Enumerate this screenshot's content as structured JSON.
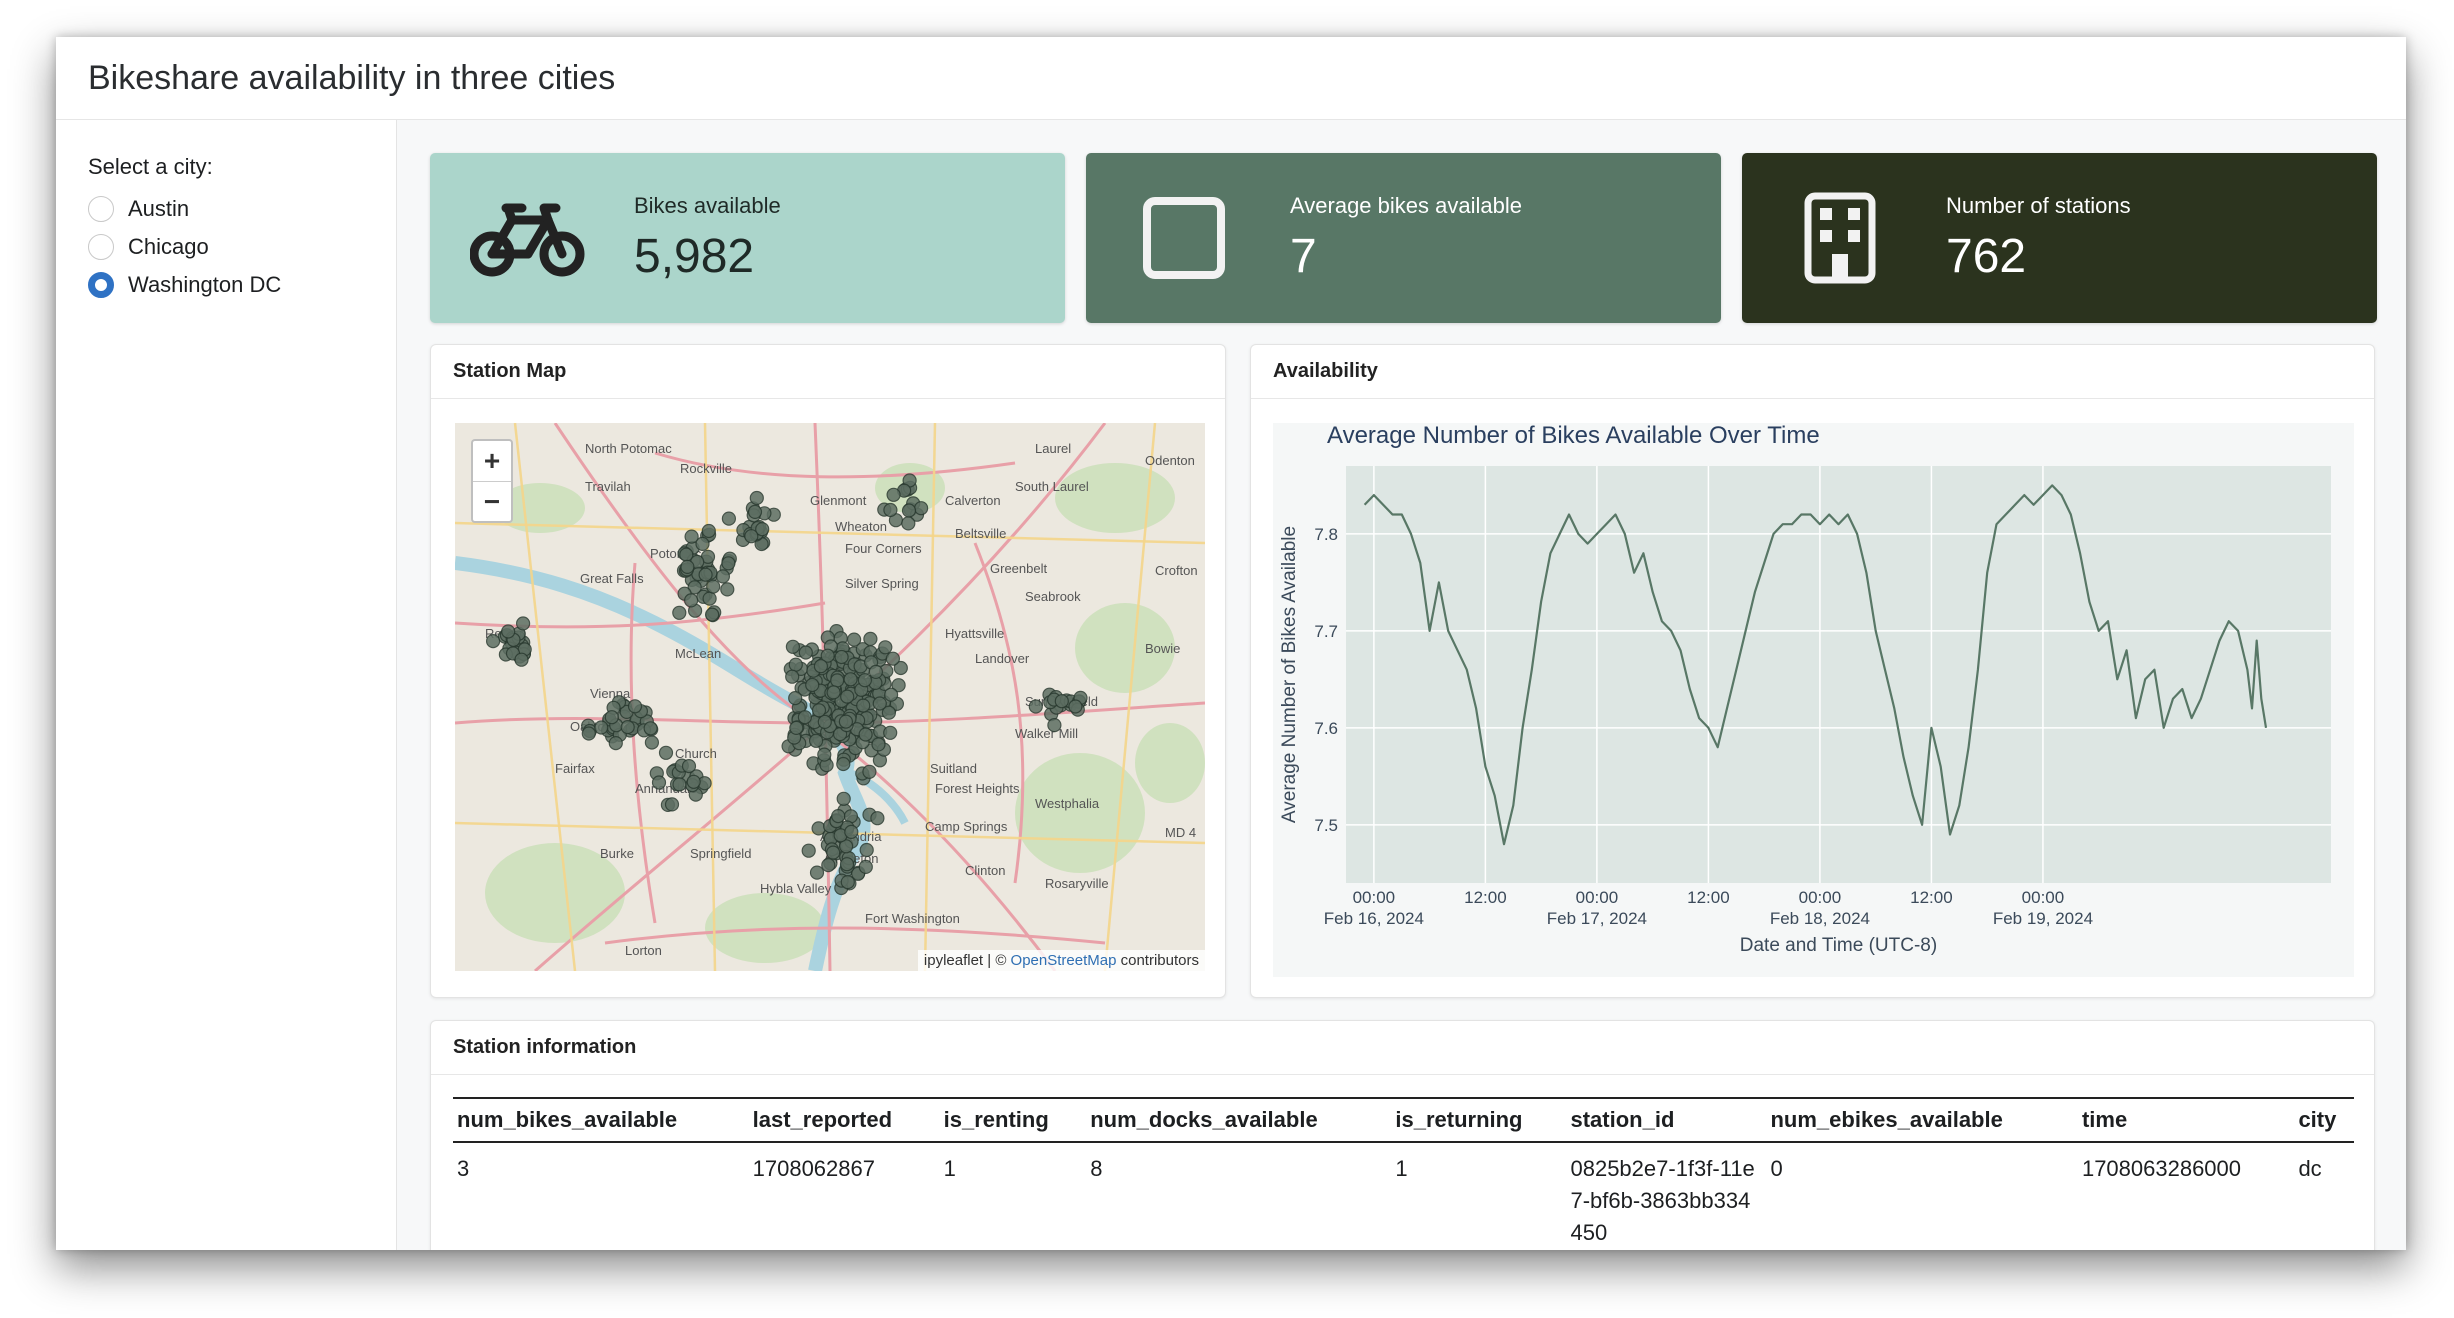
{
  "header": {
    "title": "Bikeshare availability in three cities"
  },
  "sidebar": {
    "label": "Select a city:",
    "options": [
      {
        "label": "Austin",
        "selected": false
      },
      {
        "label": "Chicago",
        "selected": false
      },
      {
        "label": "Washington DC",
        "selected": true
      }
    ]
  },
  "value_boxes": [
    {
      "title": "Bikes available",
      "value": "5,982",
      "icon": "bicycle-icon",
      "color": "#abd5cb"
    },
    {
      "title": "Average bikes available",
      "value": "7",
      "icon": "square-icon",
      "color": "#587766"
    },
    {
      "title": "Number of stations",
      "value": "762",
      "icon": "building-icon",
      "color": "#2b331e"
    }
  ],
  "map_card": {
    "title": "Station Map",
    "zoom_in": "+",
    "zoom_out": "−",
    "attribution_prefix": "ipyleaflet | © ",
    "attribution_link": "OpenStreetMap",
    "attribution_suffix": " contributors",
    "place_labels": [
      "North Potomac",
      "Rockville",
      "Laurel",
      "Odenton",
      "Travilah",
      "Glenmont",
      "Calverton",
      "South Laurel",
      "Wheaton",
      "Beltsville",
      "Potomac",
      "Four Corners",
      "Greenbelt",
      "Great Falls",
      "Silver Spring",
      "Seabrook",
      "Crofton",
      "Reston",
      "Hyattsville",
      "Bowie",
      "McLean",
      "Landover",
      "Vienna",
      "Summerfield",
      "Oakton",
      "Walker Mill",
      "Church",
      "Fairfax",
      "Suitland",
      "Annandale",
      "Forest Heights",
      "Westphalia",
      "Camp Springs",
      "Burke",
      "Springfield",
      "Groveton",
      "Clinton",
      "Hybla Valley",
      "Rosaryville",
      "Fort Washington",
      "Lorton",
      "Alexandria",
      "MD 4"
    ]
  },
  "availability_card": {
    "title": "Availability",
    "colors": {
      "line": "#587766",
      "plot_bg": "#dde6e3",
      "paper_bg": "#f5f7f7"
    }
  },
  "chart_data": {
    "type": "line",
    "title": "Average Number of Bikes Available Over Time",
    "xlabel": "Date and Time (UTC-8)",
    "ylabel": "Average Number of Bikes Available",
    "ylim": [
      7.44,
      7.87
    ],
    "yticks": [
      7.5,
      7.6,
      7.7,
      7.8
    ],
    "xrange_hours": [
      -3,
      103
    ],
    "xticks": [
      {
        "hour": 0,
        "line1": "00:00",
        "line2": "Feb 16, 2024"
      },
      {
        "hour": 12,
        "line1": "12:00",
        "line2": ""
      },
      {
        "hour": 24,
        "line1": "00:00",
        "line2": "Feb 17, 2024"
      },
      {
        "hour": 36,
        "line1": "12:00",
        "line2": ""
      },
      {
        "hour": 48,
        "line1": "00:00",
        "line2": "Feb 18, 2024"
      },
      {
        "hour": 60,
        "line1": "12:00",
        "line2": ""
      },
      {
        "hour": 72,
        "line1": "00:00",
        "line2": "Feb 19, 2024"
      }
    ],
    "series": [
      {
        "x": [
          -1,
          0,
          2,
          3,
          4,
          5,
          6,
          7,
          8,
          9,
          10,
          11,
          12,
          13,
          14,
          15,
          16,
          17,
          18,
          19,
          20,
          21,
          22,
          23,
          24,
          25,
          26,
          27,
          28,
          29,
          30,
          31,
          32,
          33,
          34,
          35,
          36,
          37,
          38,
          39,
          40,
          41,
          42,
          43,
          44,
          45,
          46,
          47,
          48,
          49,
          50,
          51,
          52,
          53,
          54,
          55,
          56,
          57,
          58,
          59,
          60,
          61,
          62,
          63,
          64,
          65,
          66,
          67,
          68,
          69,
          70,
          71,
          72,
          73,
          74,
          75,
          76,
          77,
          78,
          79,
          80,
          81,
          82,
          83,
          84,
          85,
          86,
          87,
          88,
          89,
          90,
          91,
          92,
          93,
          94,
          94.5,
          95,
          95.5,
          96
        ],
        "values": [
          7.83,
          7.84,
          7.82,
          7.82,
          7.8,
          7.77,
          7.7,
          7.75,
          7.7,
          7.68,
          7.66,
          7.62,
          7.56,
          7.53,
          7.48,
          7.52,
          7.6,
          7.66,
          7.73,
          7.78,
          7.8,
          7.82,
          7.8,
          7.79,
          7.8,
          7.81,
          7.82,
          7.8,
          7.76,
          7.78,
          7.74,
          7.71,
          7.7,
          7.68,
          7.64,
          7.61,
          7.6,
          7.58,
          7.62,
          7.66,
          7.7,
          7.74,
          7.77,
          7.8,
          7.81,
          7.81,
          7.82,
          7.82,
          7.81,
          7.82,
          7.81,
          7.82,
          7.8,
          7.76,
          7.7,
          7.66,
          7.62,
          7.57,
          7.53,
          7.5,
          7.6,
          7.56,
          7.49,
          7.52,
          7.58,
          7.66,
          7.76,
          7.81,
          7.82,
          7.83,
          7.84,
          7.83,
          7.84,
          7.85,
          7.84,
          7.82,
          7.78,
          7.73,
          7.7,
          7.71,
          7.65,
          7.68,
          7.61,
          7.65,
          7.66,
          7.6,
          7.63,
          7.64,
          7.61,
          7.63,
          7.66,
          7.69,
          7.71,
          7.7,
          7.66,
          7.62,
          7.69,
          7.63,
          7.6
        ]
      }
    ]
  },
  "table": {
    "title": "Station information",
    "columns": [
      "num_bikes_available",
      "last_reported",
      "is_renting",
      "num_docks_available",
      "is_returning",
      "station_id",
      "num_ebikes_available",
      "time",
      "city"
    ],
    "rows": [
      [
        "3",
        "1708062867",
        "1",
        "8",
        "1",
        "0825b2e7-1f3f-11e7-bf6b-3863bb334450",
        "0",
        "1708063286000",
        "dc"
      ]
    ]
  }
}
